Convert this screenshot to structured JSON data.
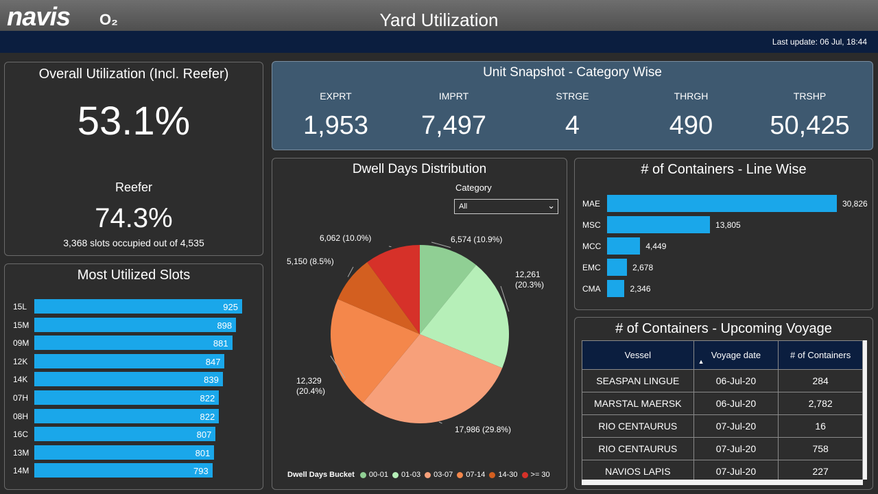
{
  "header": {
    "logo": "navis",
    "logo_sub": "O₂",
    "title": "Yard Utilization",
    "last_update": "Last update: 06 Jul, 18:44"
  },
  "overall": {
    "title": "Overall Utilization (Incl. Reefer)",
    "value": "53.1%",
    "reefer_label": "Reefer",
    "reefer_value": "74.3%",
    "reefer_note": "3,368 slots occupied out of 4,535"
  },
  "snapshot": {
    "title": "Unit Snapshot - Category Wise",
    "items": [
      {
        "label": "EXPRT",
        "value": "1,953"
      },
      {
        "label": "IMPRT",
        "value": "7,497"
      },
      {
        "label": "STRGE",
        "value": "4"
      },
      {
        "label": "THRGH",
        "value": "490"
      },
      {
        "label": "TRSHP",
        "value": "50,425"
      }
    ]
  },
  "slots": {
    "title": "Most Utilized Slots",
    "rows": [
      {
        "label": "15L",
        "value": "925"
      },
      {
        "label": "15M",
        "value": "898"
      },
      {
        "label": "09M",
        "value": "881"
      },
      {
        "label": "12K",
        "value": "847"
      },
      {
        "label": "14K",
        "value": "839"
      },
      {
        "label": "07H",
        "value": "822"
      },
      {
        "label": "08H",
        "value": "822"
      },
      {
        "label": "16C",
        "value": "807"
      },
      {
        "label": "13M",
        "value": "801"
      },
      {
        "label": "14M",
        "value": "793"
      }
    ]
  },
  "dwell": {
    "title": "Dwell Days Distribution",
    "category_label": "Category",
    "category_value": "All",
    "legend_title": "Dwell Days Bucket"
  },
  "line": {
    "title": "# of Containers - Line Wise",
    "rows": [
      {
        "label": "MAE",
        "value": "30,826"
      },
      {
        "label": "MSC",
        "value": "13,805"
      },
      {
        "label": "MCC",
        "value": "4,449"
      },
      {
        "label": "EMC",
        "value": "2,678"
      },
      {
        "label": "CMA",
        "value": "2,346"
      }
    ]
  },
  "voyage": {
    "title": "# of Containers - Upcoming Voyage",
    "columns": [
      "Vessel",
      "Voyage date",
      "# of Containers"
    ],
    "rows": [
      [
        "SEASPAN LINGUE",
        "06-Jul-20",
        "284"
      ],
      [
        "MARSTAL MAERSK",
        "06-Jul-20",
        "2,782"
      ],
      [
        "RIO CENTAURUS",
        "07-Jul-20",
        "16"
      ],
      [
        "RIO CENTAURUS",
        "07-Jul-20",
        "758"
      ],
      [
        "NAVIOS LAPIS",
        "07-Jul-20",
        "227"
      ]
    ]
  },
  "chart_data": [
    {
      "type": "bar",
      "title": "Most Utilized Slots",
      "orientation": "horizontal",
      "categories": [
        "15L",
        "15M",
        "09M",
        "12K",
        "14K",
        "07H",
        "08H",
        "16C",
        "13M",
        "14M"
      ],
      "values": [
        925,
        898,
        881,
        847,
        839,
        822,
        822,
        807,
        801,
        793
      ],
      "color": "#1aa7ea"
    },
    {
      "type": "pie",
      "title": "Dwell Days Distribution",
      "categories": [
        "00-01",
        "01-03",
        "03-07",
        "07-14",
        "14-30",
        ">= 30"
      ],
      "values": [
        6574,
        12261,
        17986,
        12329,
        5150,
        6062
      ],
      "labels": [
        "6,574 (10.9%)",
        "12,261 (20.3%)",
        "17,986 (29.8%)",
        "12,329 (20.4%)",
        "5,150 (8.5%)",
        "6,062 (10.0%)"
      ],
      "colors": [
        "#90cf94",
        "#b6efb8",
        "#f7a07a",
        "#f4874b",
        "#d35f20",
        "#d63129"
      ],
      "legend_position": "bottom"
    },
    {
      "type": "bar",
      "title": "# of Containers - Line Wise",
      "orientation": "horizontal",
      "categories": [
        "MAE",
        "MSC",
        "MCC",
        "EMC",
        "CMA"
      ],
      "values": [
        30826,
        13805,
        4449,
        2678,
        2346
      ],
      "color": "#1aa7ea"
    }
  ]
}
